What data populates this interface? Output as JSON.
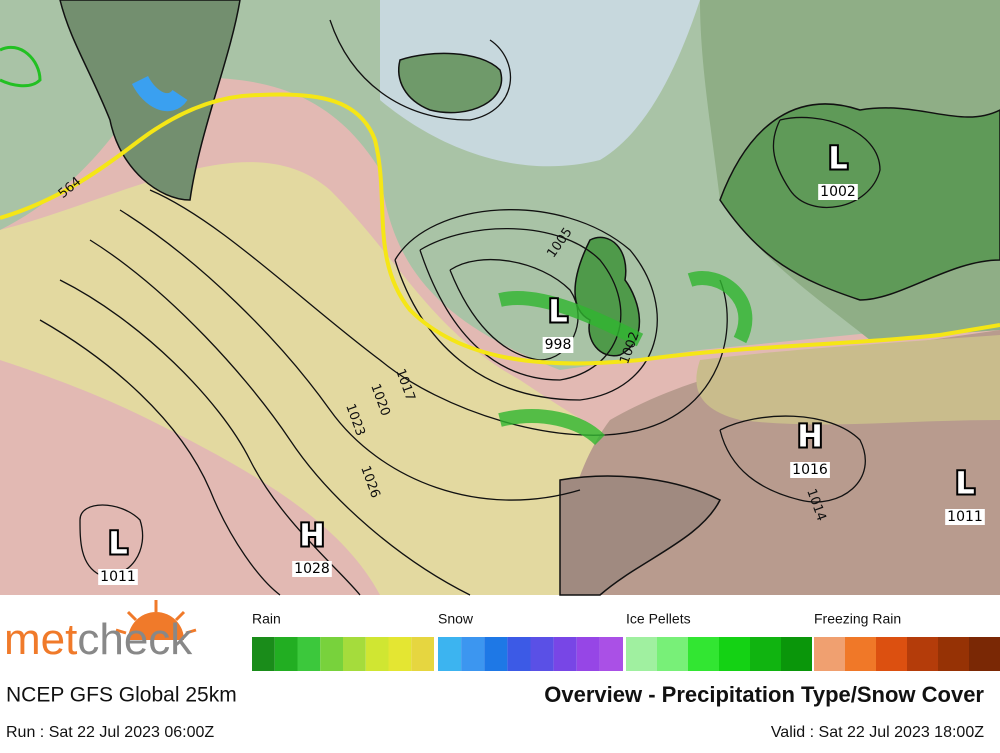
{
  "brand": {
    "part1": "met",
    "part2": "check"
  },
  "centers": [
    {
      "symbol": "L",
      "pressure": "1002"
    },
    {
      "symbol": "L",
      "pressure": "998"
    },
    {
      "symbol": "H",
      "pressure": "1016"
    },
    {
      "symbol": "L",
      "pressure": "1011"
    },
    {
      "symbol": "L",
      "pressure": "1011"
    },
    {
      "symbol": "H",
      "pressure": "1028"
    }
  ],
  "isobar_labels": [
    "1005",
    "1017",
    "1020",
    "1023",
    "1026",
    "1002",
    "1014",
    "564"
  ],
  "legend": [
    {
      "label": "Rain",
      "colors": [
        "#1a8c1a",
        "#22ae22",
        "#3cc83c",
        "#78d23c",
        "#a5dc3c",
        "#d0e632",
        "#e4e632",
        "#e6d640"
      ]
    },
    {
      "label": "Snow",
      "colors": [
        "#3cb4f0",
        "#3c96f0",
        "#1e78e6",
        "#3c5ae6",
        "#5a50e6",
        "#7846e6",
        "#9646e6",
        "#aa50e6"
      ]
    },
    {
      "label": "Ice Pellets",
      "colors": [
        "#a0f0a0",
        "#78f078",
        "#32e632",
        "#14d214",
        "#10b410",
        "#0a960a"
      ]
    },
    {
      "label": "Freezing Rain",
      "colors": [
        "#f0a070",
        "#f07828",
        "#dc5010",
        "#b43c0a",
        "#963205",
        "#7a2805"
      ]
    }
  ],
  "footer": {
    "model": "NCEP GFS Global 25km",
    "title": "Overview - Precipitation Type/Snow Cover",
    "run": "Run : Sat 22 Jul 2023 06:00Z",
    "valid": "Valid : Sat 22 Jul 2023 18:00Z"
  }
}
